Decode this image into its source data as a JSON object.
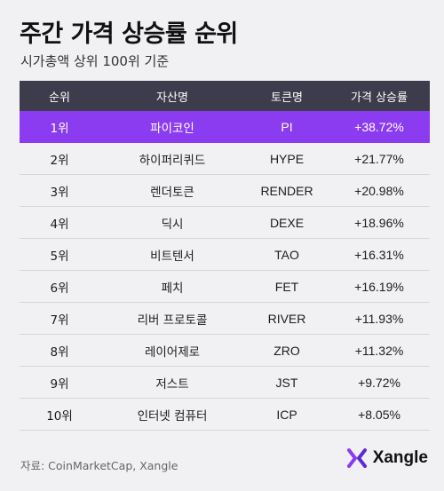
{
  "title": "주간 가격 상승률 순위",
  "subtitle": "시가총액 상위 100위 기준",
  "source": "자료: CoinMarketCap, Xangle",
  "logo": {
    "text": "Xangle",
    "icon": "xangle-x-logo-icon",
    "color": "#8c3cf0"
  },
  "colors": {
    "header_bg": "#3c3c4c",
    "highlight_bg": "#8c3cf0"
  },
  "chart_data": {
    "type": "table",
    "columns": [
      "순위",
      "자산명",
      "토큰명",
      "가격 상승률"
    ],
    "rows": [
      {
        "rank": "1위",
        "name": "파이코인",
        "ticker": "PI",
        "change": "+38.72%"
      },
      {
        "rank": "2위",
        "name": "하이퍼리퀴드",
        "ticker": "HYPE",
        "change": "+21.77%"
      },
      {
        "rank": "3위",
        "name": "렌더토큰",
        "ticker": "RENDER",
        "change": "+20.98%"
      },
      {
        "rank": "4위",
        "name": "딕시",
        "ticker": "DEXE",
        "change": "+18.96%"
      },
      {
        "rank": "5위",
        "name": "비트텐서",
        "ticker": "TAO",
        "change": "+16.31%"
      },
      {
        "rank": "6위",
        "name": "페치",
        "ticker": "FET",
        "change": "+16.19%"
      },
      {
        "rank": "7위",
        "name": "리버 프로토콜",
        "ticker": "RIVER",
        "change": "+11.93%"
      },
      {
        "rank": "8위",
        "name": "레이어제로",
        "ticker": "ZRO",
        "change": "+11.32%"
      },
      {
        "rank": "9위",
        "name": "저스트",
        "ticker": "JST",
        "change": "+9.72%"
      },
      {
        "rank": "10위",
        "name": "인터넷 컴퓨터",
        "ticker": "ICP",
        "change": "+8.05%"
      }
    ],
    "highlight_row": 0
  }
}
